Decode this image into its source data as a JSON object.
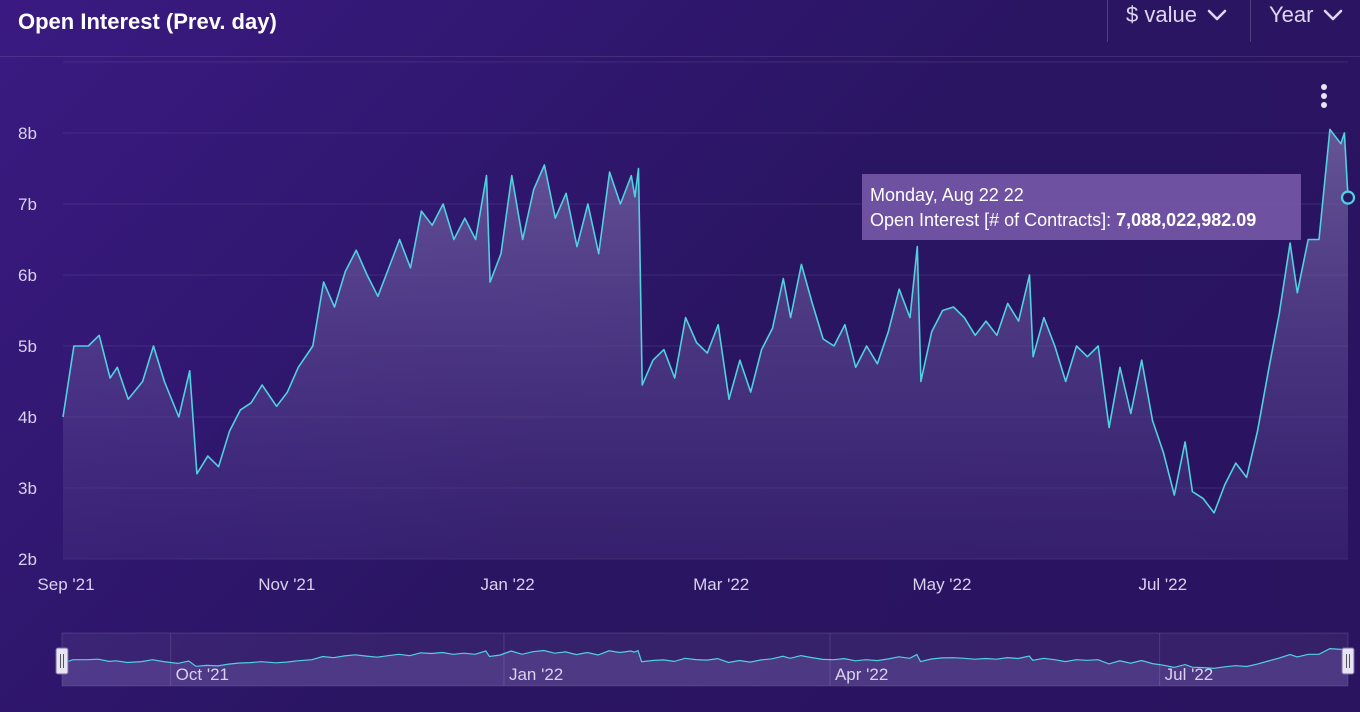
{
  "header": {
    "title": "Open Interest (Prev. day)",
    "metric_dropdown": "$ value",
    "period_dropdown": "Year"
  },
  "tooltip": {
    "date": "Monday, Aug 22 22",
    "series_label": "Open Interest [# of Contracts]:",
    "value": "7,088,022,982.09"
  },
  "colors": {
    "line": "#4fd1e0",
    "accent": "#5ce0e8"
  },
  "icons": {
    "menu": "kebab-menu-icon",
    "dropdown": "chevron-down-icon"
  },
  "chart_data": {
    "type": "area",
    "title": "Open Interest (Prev. day)",
    "series": [
      {
        "name": "Open Interest [# of Contracts]",
        "points": [
          [
            "2021-09-01",
            4.0
          ],
          [
            "2021-09-04",
            5.0
          ],
          [
            "2021-09-08",
            5.0
          ],
          [
            "2021-09-11",
            5.15
          ],
          [
            "2021-09-14",
            4.55
          ],
          [
            "2021-09-16",
            4.7
          ],
          [
            "2021-09-19",
            4.25
          ],
          [
            "2021-09-23",
            4.5
          ],
          [
            "2021-09-26",
            5.0
          ],
          [
            "2021-09-29",
            4.5
          ],
          [
            "2021-10-03",
            4.0
          ],
          [
            "2021-10-06",
            4.65
          ],
          [
            "2021-10-08",
            3.2
          ],
          [
            "2021-10-11",
            3.45
          ],
          [
            "2021-10-14",
            3.3
          ],
          [
            "2021-10-17",
            3.8
          ],
          [
            "2021-10-20",
            4.1
          ],
          [
            "2021-10-23",
            4.2
          ],
          [
            "2021-10-26",
            4.45
          ],
          [
            "2021-10-30",
            4.15
          ],
          [
            "2021-11-02",
            4.35
          ],
          [
            "2021-11-05",
            4.7
          ],
          [
            "2021-11-09",
            5.0
          ],
          [
            "2021-11-12",
            5.9
          ],
          [
            "2021-11-15",
            5.55
          ],
          [
            "2021-11-18",
            6.05
          ],
          [
            "2021-11-21",
            6.35
          ],
          [
            "2021-11-24",
            6.0
          ],
          [
            "2021-11-27",
            5.7
          ],
          [
            "2021-11-30",
            6.1
          ],
          [
            "2021-12-03",
            6.5
          ],
          [
            "2021-12-06",
            6.1
          ],
          [
            "2021-12-09",
            6.9
          ],
          [
            "2021-12-12",
            6.7
          ],
          [
            "2021-12-15",
            7.0
          ],
          [
            "2021-12-18",
            6.5
          ],
          [
            "2021-12-21",
            6.8
          ],
          [
            "2021-12-24",
            6.5
          ],
          [
            "2021-12-27",
            7.4
          ],
          [
            "2021-12-28",
            5.9
          ],
          [
            "2021-12-31",
            6.3
          ],
          [
            "2022-01-03",
            7.4
          ],
          [
            "2022-01-06",
            6.5
          ],
          [
            "2022-01-09",
            7.2
          ],
          [
            "2022-01-12",
            7.55
          ],
          [
            "2022-01-15",
            6.8
          ],
          [
            "2022-01-18",
            7.15
          ],
          [
            "2022-01-21",
            6.4
          ],
          [
            "2022-01-24",
            7.0
          ],
          [
            "2022-01-27",
            6.3
          ],
          [
            "2022-01-30",
            7.45
          ],
          [
            "2022-02-02",
            7.0
          ],
          [
            "2022-02-05",
            7.4
          ],
          [
            "2022-02-06",
            7.1
          ],
          [
            "2022-02-07",
            7.5
          ],
          [
            "2022-02-08",
            4.45
          ],
          [
            "2022-02-11",
            4.8
          ],
          [
            "2022-02-14",
            4.95
          ],
          [
            "2022-02-17",
            4.55
          ],
          [
            "2022-02-20",
            5.4
          ],
          [
            "2022-02-23",
            5.05
          ],
          [
            "2022-02-26",
            4.9
          ],
          [
            "2022-03-01",
            5.3
          ],
          [
            "2022-03-04",
            4.25
          ],
          [
            "2022-03-07",
            4.8
          ],
          [
            "2022-03-10",
            4.35
          ],
          [
            "2022-03-13",
            4.95
          ],
          [
            "2022-03-16",
            5.25
          ],
          [
            "2022-03-19",
            5.95
          ],
          [
            "2022-03-21",
            5.4
          ],
          [
            "2022-03-24",
            6.15
          ],
          [
            "2022-03-27",
            5.6
          ],
          [
            "2022-03-30",
            5.1
          ],
          [
            "2022-04-02",
            5.0
          ],
          [
            "2022-04-05",
            5.3
          ],
          [
            "2022-04-08",
            4.7
          ],
          [
            "2022-04-11",
            5.0
          ],
          [
            "2022-04-14",
            4.75
          ],
          [
            "2022-04-17",
            5.2
          ],
          [
            "2022-04-20",
            5.8
          ],
          [
            "2022-04-23",
            5.4
          ],
          [
            "2022-04-25",
            6.4
          ],
          [
            "2022-04-26",
            4.5
          ],
          [
            "2022-04-29",
            5.2
          ],
          [
            "2022-05-02",
            5.5
          ],
          [
            "2022-05-05",
            5.55
          ],
          [
            "2022-05-08",
            5.4
          ],
          [
            "2022-05-11",
            5.15
          ],
          [
            "2022-05-14",
            5.35
          ],
          [
            "2022-05-17",
            5.15
          ],
          [
            "2022-05-20",
            5.6
          ],
          [
            "2022-05-23",
            5.35
          ],
          [
            "2022-05-26",
            6.0
          ],
          [
            "2022-05-27",
            4.85
          ],
          [
            "2022-05-30",
            5.4
          ],
          [
            "2022-06-02",
            5.0
          ],
          [
            "2022-06-05",
            4.5
          ],
          [
            "2022-06-08",
            5.0
          ],
          [
            "2022-06-11",
            4.85
          ],
          [
            "2022-06-14",
            5.0
          ],
          [
            "2022-06-17",
            3.85
          ],
          [
            "2022-06-20",
            4.7
          ],
          [
            "2022-06-23",
            4.05
          ],
          [
            "2022-06-26",
            4.8
          ],
          [
            "2022-06-29",
            3.95
          ],
          [
            "2022-07-02",
            3.5
          ],
          [
            "2022-07-05",
            2.9
          ],
          [
            "2022-07-08",
            3.65
          ],
          [
            "2022-07-10",
            2.95
          ],
          [
            "2022-07-13",
            2.85
          ],
          [
            "2022-07-16",
            2.65
          ],
          [
            "2022-07-19",
            3.05
          ],
          [
            "2022-07-22",
            3.35
          ],
          [
            "2022-07-25",
            3.15
          ],
          [
            "2022-07-28",
            3.8
          ],
          [
            "2022-07-31",
            4.65
          ],
          [
            "2022-08-03",
            5.45
          ],
          [
            "2022-08-06",
            6.45
          ],
          [
            "2022-08-08",
            5.75
          ],
          [
            "2022-08-11",
            6.5
          ],
          [
            "2022-08-14",
            6.5
          ],
          [
            "2022-08-17",
            8.05
          ],
          [
            "2022-08-20",
            7.85
          ],
          [
            "2022-08-21",
            8.0
          ],
          [
            "2022-08-22",
            7.09
          ]
        ]
      }
    ],
    "ylim": [
      2,
      9
    ],
    "yticks": [
      {
        "value": 2,
        "label": "2b"
      },
      {
        "value": 3,
        "label": "3b"
      },
      {
        "value": 4,
        "label": "4b"
      },
      {
        "value": 5,
        "label": "5b"
      },
      {
        "value": 6,
        "label": "6b"
      },
      {
        "value": 7,
        "label": "7b"
      },
      {
        "value": 8,
        "label": "8b"
      }
    ],
    "xlim": [
      "2021-09-01",
      "2022-08-22"
    ],
    "xticks": [
      {
        "value": "2021-09-01",
        "label": "Sep '21"
      },
      {
        "value": "2021-11-01",
        "label": "Nov '21"
      },
      {
        "value": "2022-01-01",
        "label": "Jan '22"
      },
      {
        "value": "2022-03-01",
        "label": "Mar '22"
      },
      {
        "value": "2022-05-01",
        "label": "May '22"
      },
      {
        "value": "2022-07-01",
        "label": "Jul '22"
      }
    ],
    "navigator_ticks": [
      {
        "value": "2021-10-01",
        "label": "Oct '21"
      },
      {
        "value": "2022-01-01",
        "label": "Jan '22"
      },
      {
        "value": "2022-04-01",
        "label": "Apr '22"
      },
      {
        "value": "2022-07-01",
        "label": "Jul '22"
      }
    ],
    "grid": true,
    "highlighted_point": "2022-08-22"
  }
}
